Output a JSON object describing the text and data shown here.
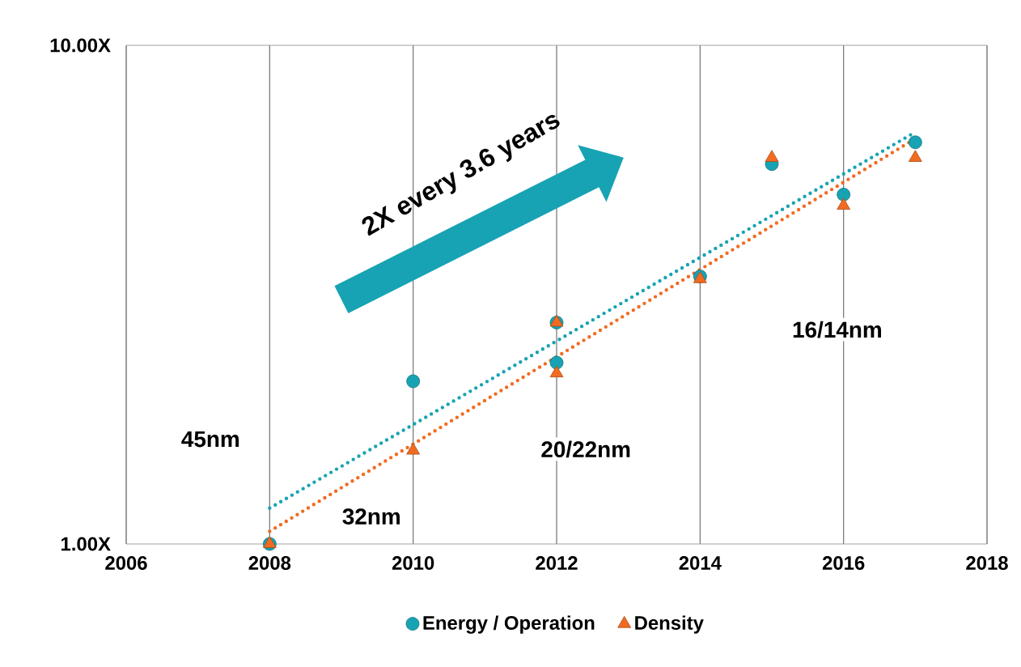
{
  "chart_data": {
    "type": "scatter",
    "log": "y",
    "grid": "x",
    "legend": "bottom",
    "xlim": [
      2006,
      2018
    ],
    "xticks": [
      2006,
      2008,
      2010,
      2012,
      2014,
      2016,
      2018
    ],
    "ylim": [
      1,
      10
    ],
    "yticks": [
      {
        "value": 1,
        "label": "1.00X"
      },
      {
        "value": 10,
        "label": "10.00X"
      }
    ],
    "series": [
      {
        "name": "Energy / Operation",
        "color": "#17a3b3",
        "marker": "circle",
        "x": [
          2008,
          2010,
          2012,
          2012,
          2014,
          2015,
          2016,
          2017
        ],
        "values": [
          1.0,
          2.12,
          2.78,
          2.31,
          3.44,
          5.78,
          5.02,
          6.39
        ]
      },
      {
        "name": "Density",
        "color": "#f26b21",
        "marker": "triangle",
        "x": [
          2008,
          2010,
          2012,
          2012,
          2014,
          2015,
          2016,
          2017
        ],
        "values": [
          1.0,
          1.54,
          2.78,
          2.2,
          3.4,
          5.95,
          4.77,
          5.95
        ]
      },
      {
        "type": "line",
        "color": "#17a3b3",
        "line_style": "dotted",
        "marker": "none",
        "x": [
          2008,
          2017
        ],
        "values": [
          1.18,
          6.7
        ]
      },
      {
        "type": "line",
        "color": "#f26b21",
        "line_style": "dotted",
        "marker": "none",
        "x": [
          2008,
          2017
        ],
        "values": [
          1.06,
          6.5
        ]
      }
    ],
    "annotations": [
      "45nm",
      "32nm",
      "20/22nm",
      "16/14nm",
      "2X every 3.6 years"
    ]
  }
}
